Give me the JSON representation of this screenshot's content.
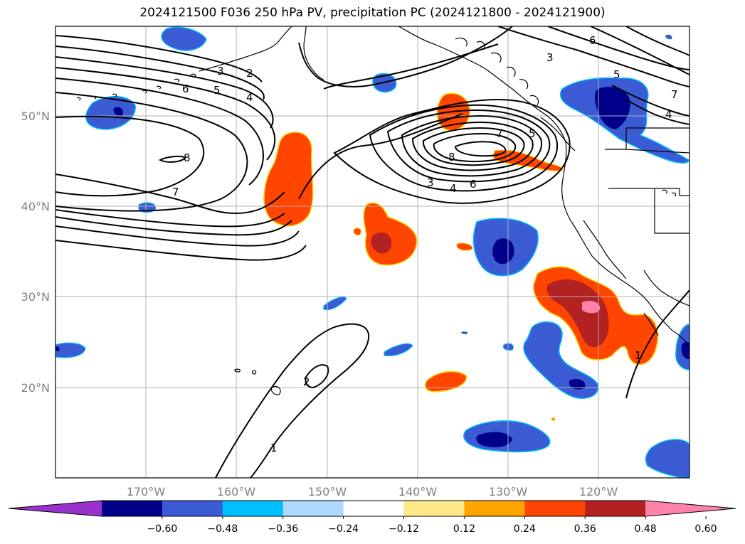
{
  "title": "2024121500 F036 250 hPa PV, precipitation PC (2024121800 - 2024121900)",
  "map": {
    "lon_labels": [
      "170°W",
      "160°W",
      "150°W",
      "140°W",
      "130°W",
      "120°W"
    ],
    "lat_labels": [
      "50°N",
      "40°N",
      "30°N",
      "20°N"
    ],
    "contour_labels": [
      "2",
      "3",
      "4",
      "5",
      "6",
      "7",
      "8",
      "3",
      "4",
      "5",
      "6",
      "7",
      "8",
      "3",
      "4",
      "5",
      "6",
      "7",
      "1",
      "2",
      "1"
    ]
  },
  "colorbar": {
    "colors": [
      "#9932cc",
      "#00008b",
      "#3a5bd4",
      "#00bfff",
      "#add8ff",
      "#ffffff",
      "#ffe98a",
      "#ffa500",
      "#ff4500",
      "#b22222",
      "#ff82ab"
    ],
    "tick_labels": [
      "−0.60",
      "−0.48",
      "−0.36",
      "−0.24",
      "−0.12",
      "0.12",
      "0.24",
      "0.36",
      "0.48",
      "0.60"
    ]
  }
}
